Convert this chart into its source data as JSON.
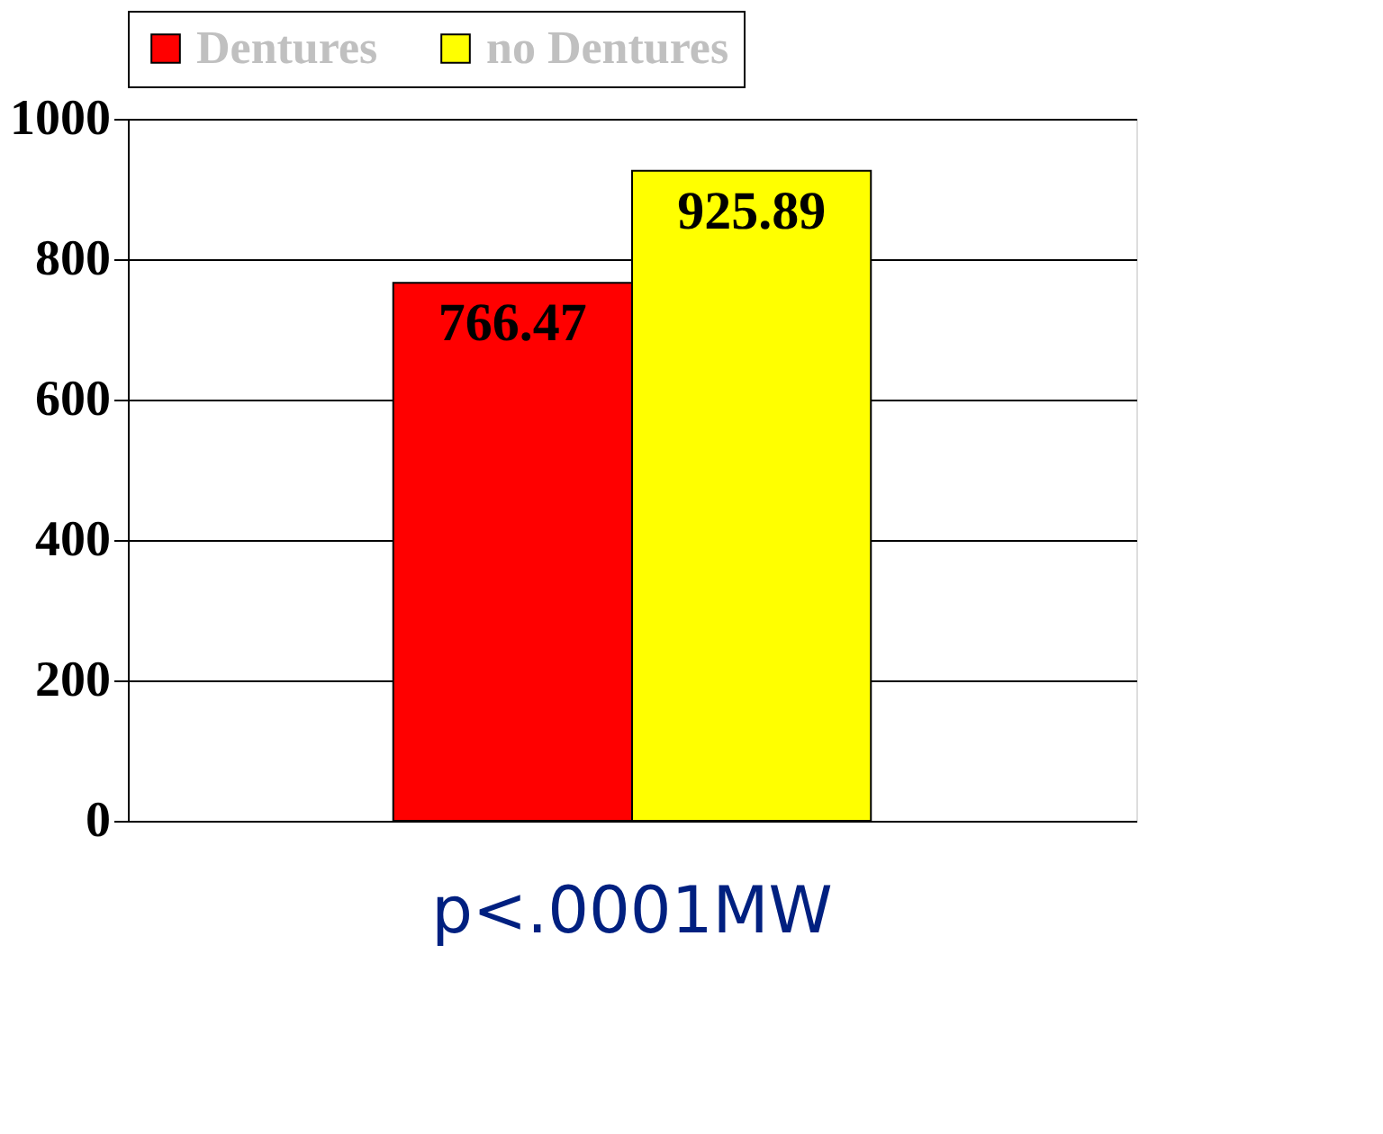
{
  "chart_data": {
    "type": "bar",
    "categories": [
      null
    ],
    "series": [
      {
        "name": "Dentures",
        "color": "#ff0000",
        "values": [
          766.47
        ]
      },
      {
        "name": "no Dentures",
        "color": "#ffff00",
        "values": [
          925.89
        ]
      }
    ],
    "ylim": [
      0,
      1000
    ],
    "yticks": [
      0,
      200,
      400,
      600,
      800,
      1000
    ],
    "grid": "y",
    "legend": "top",
    "data_labels": true,
    "annotations": [
      "p<.0001MW"
    ]
  }
}
